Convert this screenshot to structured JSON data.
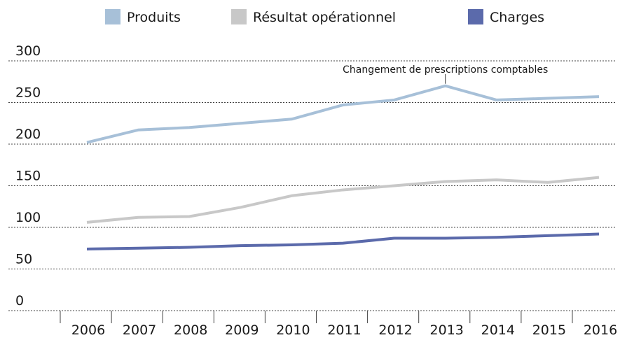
{
  "chart_data": {
    "type": "line",
    "categories": [
      "2006",
      "2007",
      "2008",
      "2009",
      "2010",
      "2011",
      "2012",
      "2013",
      "2014",
      "2015",
      "2016"
    ],
    "series": [
      {
        "name": "Produits",
        "color": "#a7c0d8",
        "values": [
          202,
          217,
          220,
          225,
          230,
          247,
          253,
          270,
          253,
          255,
          257
        ]
      },
      {
        "name": "Résultat opérationnel",
        "color": "#c8c8c8",
        "values": [
          106,
          112,
          113,
          124,
          138,
          145,
          150,
          155,
          157,
          154,
          160
        ]
      },
      {
        "name": "Charges",
        "color": "#5b6aab",
        "values": [
          74,
          75,
          76,
          78,
          79,
          81,
          87,
          87,
          88,
          90,
          92
        ]
      }
    ],
    "ylim": [
      0,
      300
    ],
    "yticks": [
      0,
      50,
      100,
      150,
      200,
      250,
      300
    ],
    "grid": true,
    "annotation": {
      "text": "Changement de prescriptions comptables",
      "x": "2013"
    }
  }
}
